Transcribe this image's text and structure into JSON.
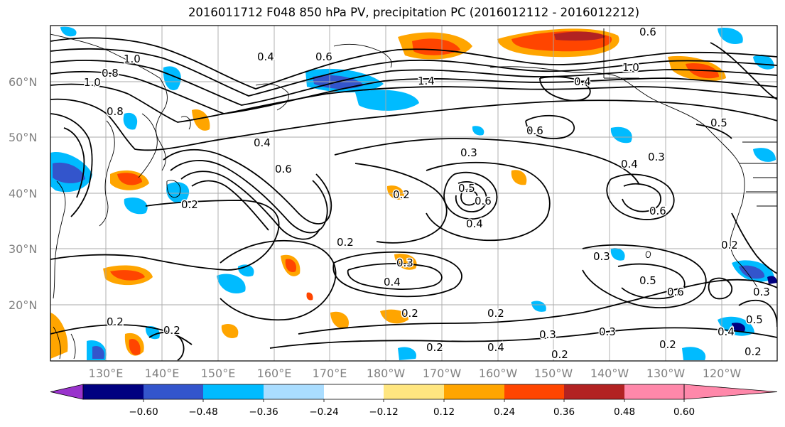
{
  "title": "2016011712 F048 850 hPa PV, precipitation PC (2016012112 - 2016012212)",
  "lat_labels": [
    "60°N",
    "50°N",
    "40°N",
    "30°N",
    "20°N"
  ],
  "lon_labels": [
    "130°E",
    "140°E",
    "150°E",
    "160°E",
    "170°E",
    "180°W",
    "170°W",
    "160°W",
    "150°W",
    "140°W",
    "130°W",
    "120°W"
  ],
  "colorbar": {
    "colors": [
      "#9933cc",
      "#000080",
      "#3355cc",
      "#00bbff",
      "#aaddff",
      "#ffffff",
      "#ffe680",
      "#ffa500",
      "#ff4500",
      "#b22222",
      "#ff88aa"
    ],
    "ticks": [
      "−0.60",
      "−0.48",
      "−0.36",
      "−0.24",
      "−0.12",
      "0.12",
      "0.24",
      "0.36",
      "0.48",
      "0.60"
    ]
  },
  "contour_labels": [
    "1.0",
    "0.8",
    "1.0",
    "0.8",
    "0.6",
    "0.4",
    "1.4",
    "0.6",
    "0.4",
    "1.0",
    "0.5",
    "0.4",
    "0.6",
    "0.2",
    "0.2",
    "0.3",
    "0.2",
    "0.5",
    "0.6",
    "0.4",
    "0.3",
    "0.6",
    "0.3",
    "0.4",
    "0.6",
    "0.2",
    "0.3",
    "0.4",
    "0.2",
    "0.2",
    "0.4",
    "0.3",
    "0.3",
    "0.5",
    "0.6",
    "0.3",
    "0.4",
    "0.5",
    "0.2",
    "0.2",
    "0.2",
    "0.2",
    "0.2",
    "0.2"
  ]
}
